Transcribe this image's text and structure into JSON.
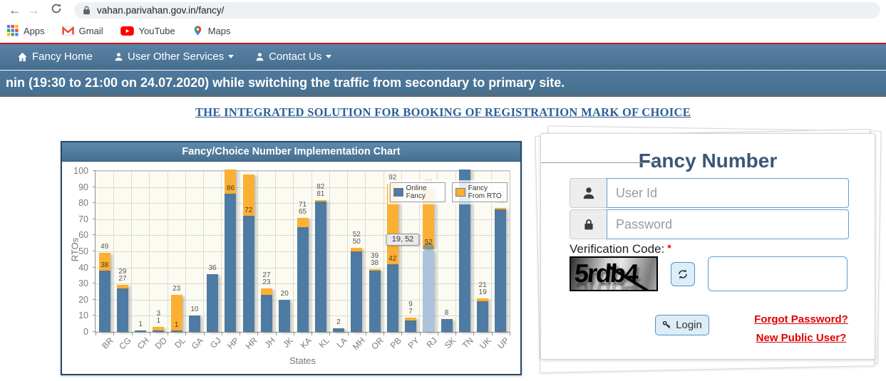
{
  "browser": {
    "url": "vahan.parivahan.gov.in/fancy/",
    "buttons": [
      {
        "name": "back",
        "glyph": "←"
      },
      {
        "name": "forward",
        "glyph": "→"
      },
      {
        "name": "reload",
        "glyph": "reload-icon"
      }
    ],
    "bookmarks": [
      {
        "label": "Apps",
        "icon": "apps-grid-icon"
      },
      {
        "label": "Gmail",
        "icon": "gmail-icon"
      },
      {
        "label": "YouTube",
        "icon": "youtube-icon"
      },
      {
        "label": "Maps",
        "icon": "maps-icon"
      }
    ]
  },
  "navbar": {
    "items": [
      {
        "label": "Fancy Home",
        "icon": "home-icon",
        "caret": false,
        "name": "nav-fancy-home"
      },
      {
        "label": "User Other Services",
        "icon": "user-icon",
        "caret": true,
        "name": "nav-user-other-services"
      },
      {
        "label": "Contact Us",
        "icon": "user-icon",
        "caret": true,
        "name": "nav-contact-us"
      }
    ]
  },
  "banner": {
    "text": "nin (19:30 to 21:00 on 24.07.2020) while switching the traffic from secondary to primary site."
  },
  "heading": {
    "text": "THE INTEGRATED SOLUTION FOR BOOKING OF REGISTRATION MARK OF CHOICE"
  },
  "chart_data": {
    "type": "bar",
    "stacked": true,
    "title": "Fancy/Choice Number Implementation Chart",
    "xlabel": "States",
    "ylabel": "RTOs",
    "ylim": [
      0,
      100
    ],
    "yticks": [
      0,
      10,
      20,
      30,
      40,
      50,
      60,
      70,
      80,
      90,
      100
    ],
    "grid": true,
    "colors": {
      "online": "#4d7ba3",
      "rto": "#fbb034",
      "highlight": "#a9c4dc"
    },
    "legend": {
      "position": "top-right-inside",
      "items": [
        {
          "label": "Online Fancy",
          "color": "#4d7ba3"
        },
        {
          "label": "Fancy From RTO",
          "color": "#fbb034"
        }
      ]
    },
    "tooltip": {
      "text": "19, 52",
      "state": "RJ",
      "y": 52
    },
    "series_names": [
      "Online Fancy",
      "Fancy From RTO"
    ],
    "states": [
      {
        "code": "BR",
        "online": 38,
        "total": 49,
        "label_style": "inside"
      },
      {
        "code": "CG",
        "online": 27,
        "total": 29,
        "label_style": "stacked"
      },
      {
        "code": "CH",
        "online": 1,
        "total": 1,
        "label_style": "single"
      },
      {
        "code": "DD",
        "online": 1,
        "total": 3,
        "label_style": "stacked"
      },
      {
        "code": "DL",
        "online": 1,
        "total": 23,
        "label_style": "inside"
      },
      {
        "code": "GA",
        "online": 10,
        "total": 10,
        "label_style": "single"
      },
      {
        "code": "GJ",
        "online": 36,
        "total": 36,
        "label_style": "single"
      },
      {
        "code": "HP",
        "online": 86,
        "total": 102,
        "label_style": "inside",
        "clipped": true,
        "hide_total_label": true
      },
      {
        "code": "HR",
        "online": 72,
        "total": 98,
        "label_style": "inside",
        "hide_total_label": true
      },
      {
        "code": "JH",
        "online": 23,
        "total": 27,
        "label_style": "stacked"
      },
      {
        "code": "JK",
        "online": 20,
        "total": 20,
        "label_style": "single"
      },
      {
        "code": "KA",
        "online": 65,
        "total": 71,
        "label_style": "stacked"
      },
      {
        "code": "KL",
        "online": 81,
        "total": 82,
        "label_style": "stacked"
      },
      {
        "code": "LA",
        "online": 2,
        "total": 2,
        "label_style": "single"
      },
      {
        "code": "MH",
        "online": 50,
        "total": 52,
        "label_style": "stacked"
      },
      {
        "code": "OR",
        "online": 38,
        "total": 39,
        "label_style": "stacked"
      },
      {
        "code": "PB",
        "online": 42,
        "total": 92,
        "label_style": "inside"
      },
      {
        "code": "PY",
        "online": 7,
        "total": 9,
        "label_style": "stacked"
      },
      {
        "code": "RJ",
        "online": 52,
        "total": 89,
        "label_style": "inside",
        "highlighted": true,
        "faint_total_label": true
      },
      {
        "code": "SK",
        "online": 8,
        "total": 8,
        "label_style": "single"
      },
      {
        "code": "TN",
        "online": 102,
        "total": 102,
        "label_style": "none",
        "clipped": true
      },
      {
        "code": "UK",
        "online": 19,
        "total": 21,
        "label_style": "stacked"
      },
      {
        "code": "UP",
        "online": 76,
        "total": 77,
        "label_style": "stacked"
      }
    ]
  },
  "login": {
    "title": "Fancy Number",
    "fields": [
      {
        "icon": "user-icon",
        "placeholder": "User Id",
        "value": ""
      },
      {
        "icon": "lock-icon",
        "placeholder": "Password",
        "value": ""
      }
    ],
    "verification_label": "Verification Code:",
    "required_mark": "*",
    "captcha_text": "5rdb4",
    "captcha_input_value": "",
    "login_label": "Login",
    "links": [
      {
        "label": "Forgot Password?",
        "name": "forgot-password-link"
      },
      {
        "label": "New Public User?",
        "name": "new-public-user-link"
      }
    ]
  }
}
